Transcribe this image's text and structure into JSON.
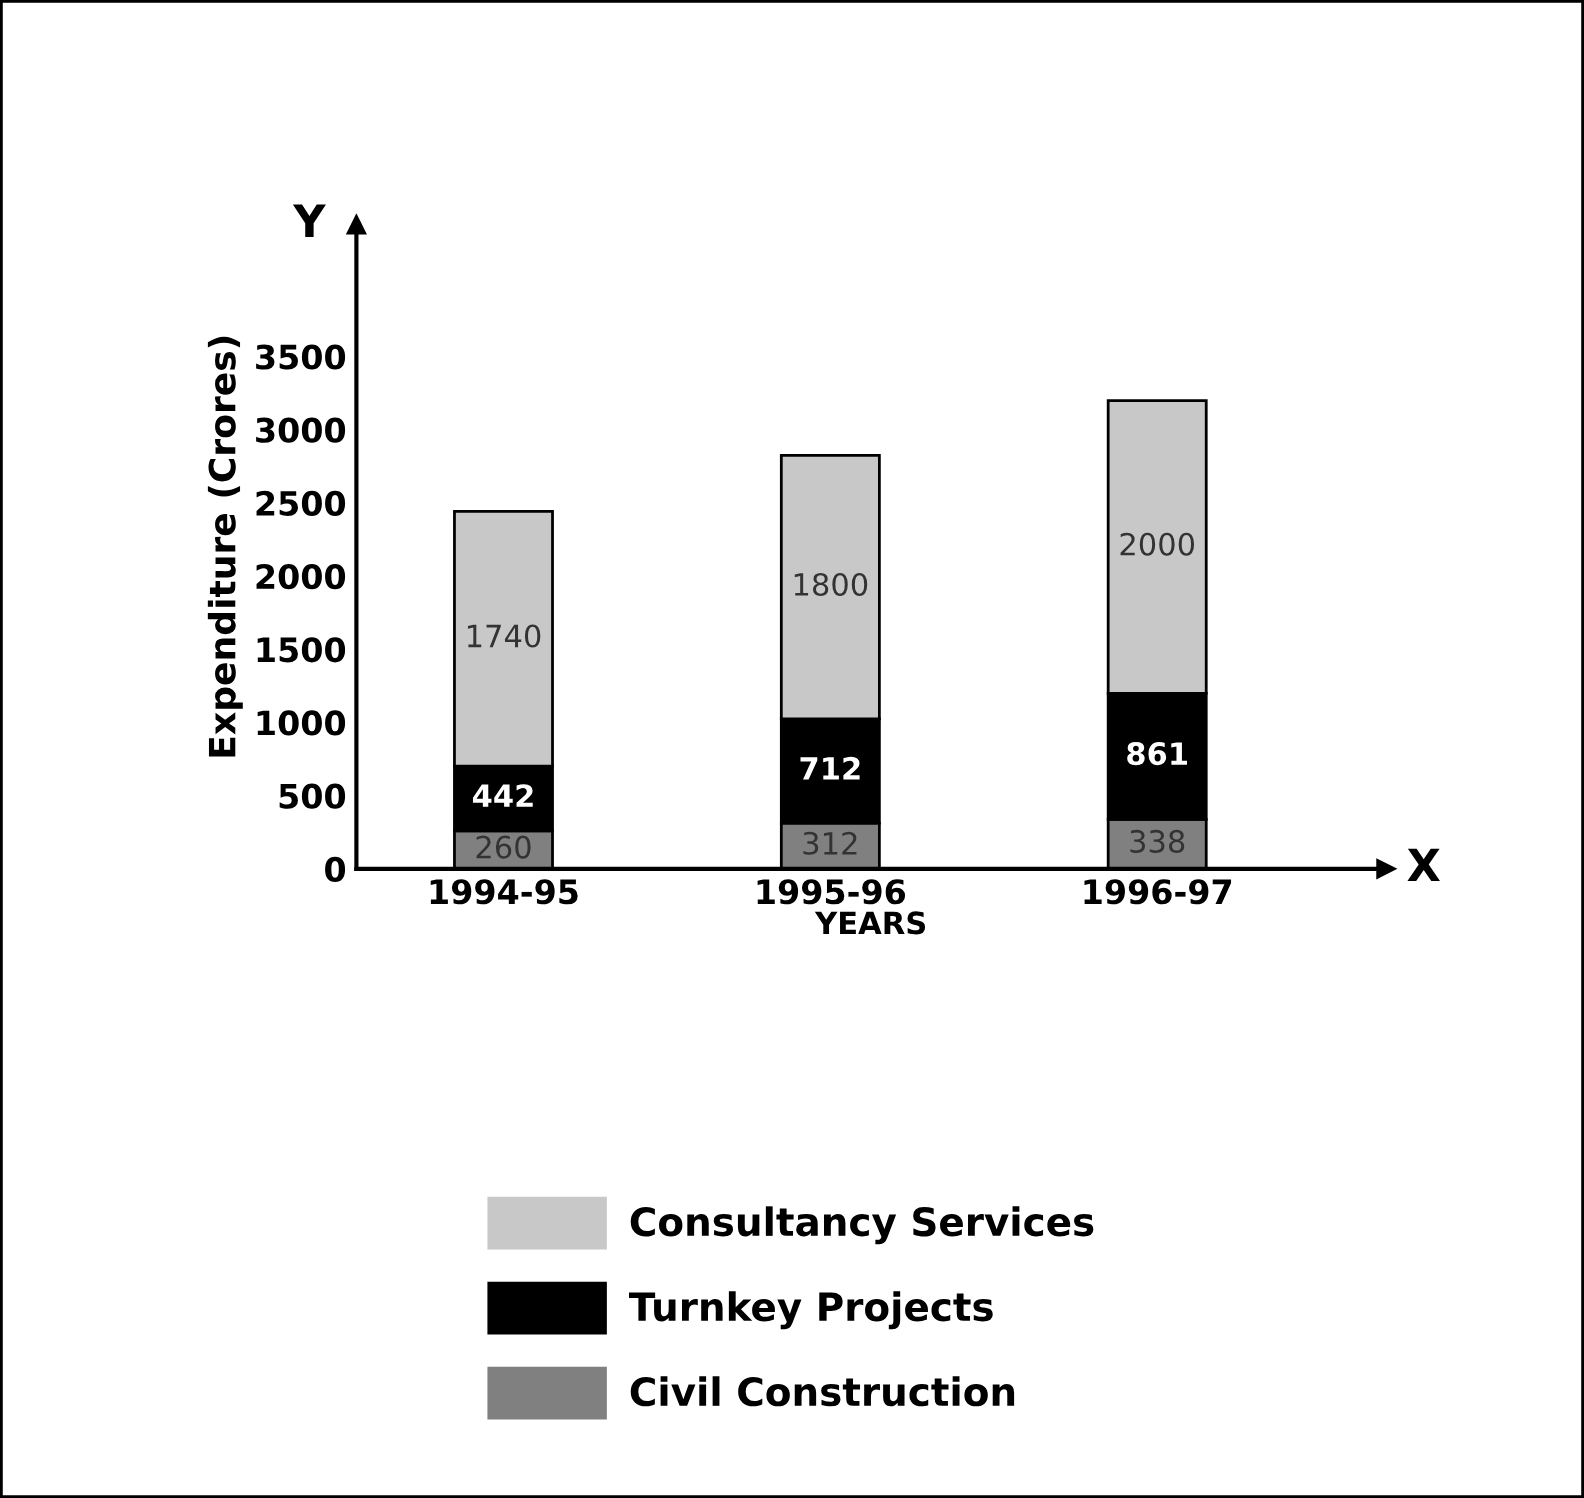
{
  "chart_data": {
    "type": "bar",
    "stacked": true,
    "categories": [
      "1994-95",
      "1995-96",
      "1996-97"
    ],
    "xlabel": "YEARS",
    "ylabel": "Expenditure (Crores)",
    "annotations": [
      "Y",
      "X"
    ],
    "series": [
      {
        "name": "Civil Construction",
        "color": "#808080",
        "values": [
          260,
          312,
          338
        ]
      },
      {
        "name": "Turnkey Projects",
        "color": "#000000",
        "values": [
          442,
          712,
          861
        ]
      },
      {
        "name": "Consultancy Services",
        "color": "#c8c8c8",
        "values": [
          1740,
          1800,
          2000
        ]
      }
    ],
    "ylim": [
      0,
      4400
    ],
    "yticks": [
      0,
      500,
      1000,
      1500,
      2000,
      2500,
      3000,
      3500
    ],
    "grid": false,
    "legend": "bottom",
    "data_labels": true
  }
}
